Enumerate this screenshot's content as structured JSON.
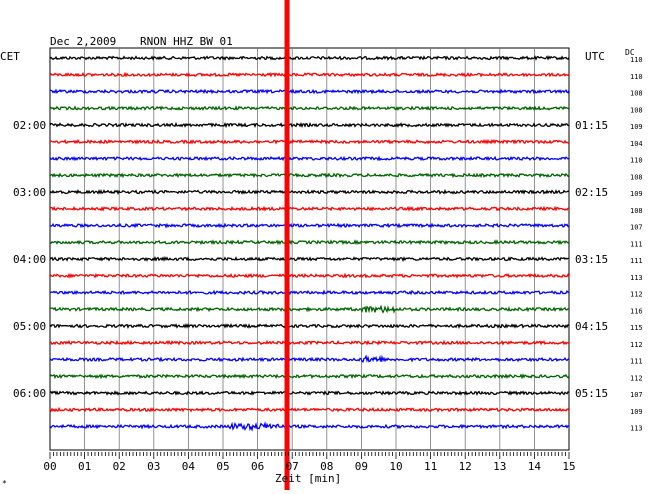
{
  "header": {
    "date": "Dec 2,2009",
    "station": "RNON HHZ BW 01",
    "left_zone": "CET",
    "right_zone": "UTC",
    "dc_label": "DC"
  },
  "footer": {
    "xlabel": "Zeit [min]",
    "corner_mark": "*"
  },
  "chart_data": {
    "type": "line",
    "title": "Dec 2,2009 RNON HHZ BW 01",
    "xlabel": "Zeit [min]",
    "xlim": [
      0,
      15
    ],
    "x_ticks": [
      "00",
      "01",
      "02",
      "03",
      "04",
      "05",
      "06",
      "07",
      "08",
      "09",
      "10",
      "11",
      "12",
      "13",
      "14",
      "15"
    ],
    "minutes_per_trace": 15,
    "trace_colors": [
      "#000000",
      "#ff0000",
      "#0000ff",
      "#006400"
    ],
    "cet_labels": [
      {
        "trace": 4,
        "text": "02:00"
      },
      {
        "trace": 8,
        "text": "03:00"
      },
      {
        "trace": 12,
        "text": "04:00"
      },
      {
        "trace": 16,
        "text": "05:00"
      },
      {
        "trace": 20,
        "text": "06:00"
      }
    ],
    "utc_labels": [
      {
        "trace": 4,
        "text": "01:15"
      },
      {
        "trace": 8,
        "text": "02:15"
      },
      {
        "trace": 12,
        "text": "03:15"
      },
      {
        "trace": 16,
        "text": "04:15"
      },
      {
        "trace": 20,
        "text": "05:15"
      }
    ],
    "dc_offsets": [
      110,
      110,
      108,
      108,
      109,
      104,
      110,
      108,
      109,
      108,
      107,
      111,
      111,
      113,
      112,
      116,
      115,
      112,
      111,
      112,
      107,
      109,
      113
    ],
    "event_marker": {
      "minute": 6.85,
      "color": "#ff0000"
    },
    "events": [
      {
        "trace": 15,
        "minute_start": 9.0,
        "minute_end": 10.0
      },
      {
        "trace": 18,
        "minute_start": 9.0,
        "minute_end": 9.6
      },
      {
        "trace": 22,
        "minute_start": 5.2,
        "minute_end": 6.6
      }
    ],
    "grid": true
  }
}
